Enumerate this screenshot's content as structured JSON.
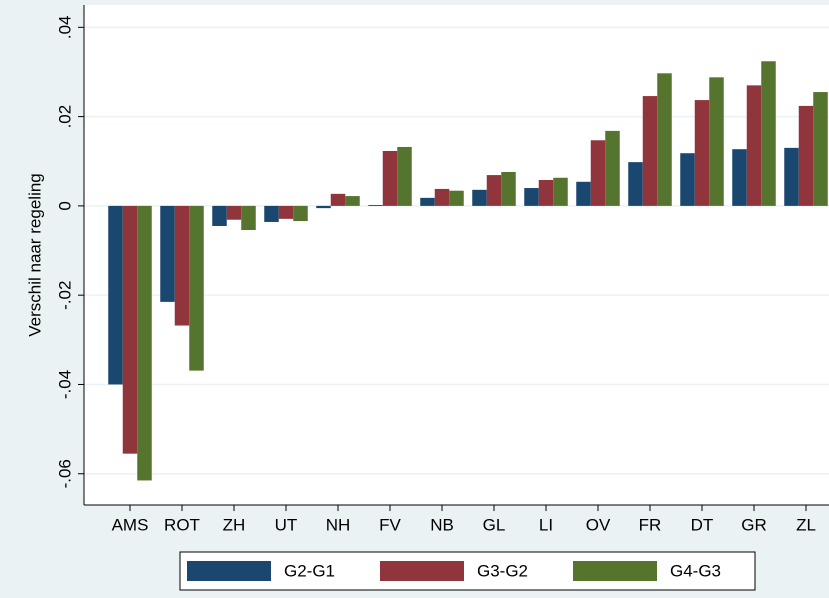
{
  "chart_data": {
    "type": "bar",
    "y_label": "Verschil naar regeling",
    "categories": [
      "AMS",
      "ROT",
      "ZH",
      "UT",
      "NH",
      "FV",
      "NB",
      "GL",
      "LI",
      "OV",
      "FR",
      "DT",
      "GR",
      "ZL"
    ],
    "series": [
      {
        "name": "G2-G1",
        "color": "#1a476f",
        "values": [
          -0.04,
          -0.0215,
          -0.0045,
          -0.0036,
          -0.0005,
          0.0002,
          0.0018,
          0.0036,
          0.004,
          0.0054,
          0.0098,
          0.0118,
          0.0127,
          0.013
        ]
      },
      {
        "name": "G3-G2",
        "color": "#90353b",
        "values": [
          -0.0555,
          -0.0268,
          -0.0031,
          -0.0029,
          0.0027,
          0.0123,
          0.0038,
          0.0069,
          0.0058,
          0.0147,
          0.0246,
          0.0237,
          0.027,
          0.0224
        ]
      },
      {
        "name": "G4-G3",
        "color": "#55752f",
        "values": [
          -0.0615,
          -0.0369,
          -0.0054,
          -0.0034,
          0.0022,
          0.0132,
          0.0034,
          0.0076,
          0.0063,
          0.0168,
          0.0297,
          0.0288,
          0.0324,
          0.0255
        ]
      }
    ],
    "ylim": [
      -0.067,
      0.045
    ],
    "yticks": [
      {
        "value": -0.06,
        "label": "-.06"
      },
      {
        "value": -0.04,
        "label": "-.04"
      },
      {
        "value": -0.02,
        "label": "-.02"
      },
      0,
      {
        "value": 0.02,
        "label": ".02"
      },
      {
        "value": 0.04,
        "label": ".04"
      }
    ],
    "grid": true,
    "legend": "bottom"
  }
}
